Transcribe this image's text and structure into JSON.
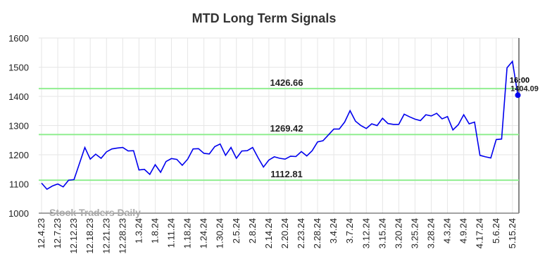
{
  "chart_data": {
    "type": "line",
    "title": "MTD Long Term Signals",
    "watermark": "Stock Traders Daily",
    "categories": [
      "12.4.23",
      null,
      null,
      "12.7.23",
      null,
      null,
      "12.12.23",
      null,
      null,
      "12.18.23",
      null,
      null,
      "12.21.23",
      null,
      null,
      "12.28.23",
      null,
      null,
      "1.3.24",
      null,
      null,
      "1.8.24",
      null,
      null,
      "1.11.24",
      null,
      null,
      "1.18.24",
      null,
      null,
      "1.24.24",
      null,
      null,
      "1.30.24",
      null,
      null,
      "2.5.24",
      null,
      null,
      "2.8.24",
      null,
      null,
      "2.14.24",
      null,
      null,
      "2.20.24",
      null,
      null,
      "2.23.24",
      null,
      null,
      "2.28.24",
      null,
      null,
      "3.4.24",
      null,
      null,
      "3.7.24",
      null,
      null,
      "3.12.24",
      null,
      null,
      "3.15.24",
      null,
      null,
      "3.20.24",
      null,
      null,
      "3.25.24",
      null,
      null,
      "3.28.24",
      null,
      null,
      "4.3.24",
      null,
      null,
      "4.9.24",
      null,
      null,
      "4.17.24",
      null,
      null,
      "5.6.24",
      null,
      null,
      "5.15.24",
      null
    ],
    "values": [
      1103,
      1082,
      1093,
      1100,
      1090,
      1113,
      1115,
      1170,
      1225,
      1185,
      1202,
      1188,
      1210,
      1220,
      1223,
      1225,
      1213,
      1214,
      1148,
      1150,
      1133,
      1166,
      1140,
      1177,
      1187,
      1184,
      1164,
      1185,
      1220,
      1221,
      1205,
      1203,
      1228,
      1237,
      1198,
      1225,
      1188,
      1213,
      1214,
      1225,
      1190,
      1158,
      1182,
      1193,
      1188,
      1185,
      1195,
      1194,
      1211,
      1196,
      1214,
      1244,
      1248,
      1268,
      1288,
      1288,
      1312,
      1351,
      1315,
      1300,
      1290,
      1306,
      1300,
      1325,
      1307,
      1304,
      1304,
      1339,
      1330,
      1322,
      1317,
      1337,
      1333,
      1342,
      1323,
      1331,
      1285,
      1303,
      1337,
      1306,
      1312,
      1198,
      1193,
      1189,
      1252,
      1254,
      1498,
      1520,
      1404.09
    ],
    "color": "#0000ee",
    "last_label": "16:00",
    "hlines": [
      {
        "value": 1426.66,
        "color": "#90ee90",
        "label_color": "#006400"
      },
      {
        "value": 1269.42,
        "color": "#90ee90",
        "label_color": "#006400"
      },
      {
        "value": 1112.81,
        "color": "#90ee90",
        "label_color": "#006400"
      }
    ],
    "ylim": [
      1000,
      1600
    ],
    "yticks": [
      1000,
      1100,
      1200,
      1300,
      1400,
      1500,
      1600
    ],
    "grid": true
  }
}
